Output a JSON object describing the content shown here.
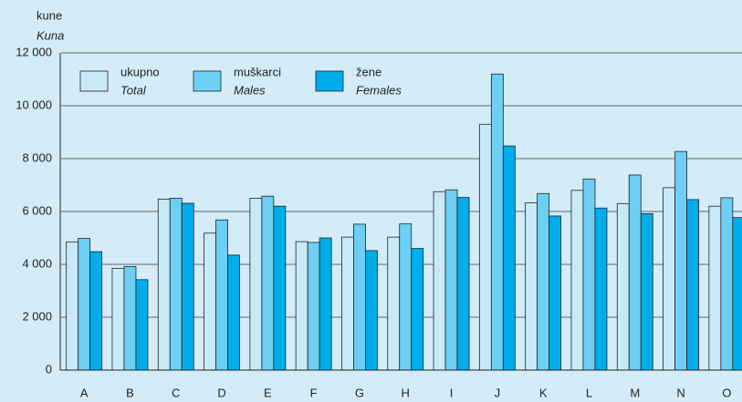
{
  "chart_data": {
    "type": "bar",
    "y_label": "kune",
    "y_label_en": "Kuna",
    "categories": [
      "A",
      "B",
      "C",
      "D",
      "E",
      "F",
      "G",
      "H",
      "I",
      "J",
      "K",
      "L",
      "M",
      "N",
      "O"
    ],
    "series": [
      {
        "name": "ukupno",
        "name_en": "Total",
        "color": "#c8eaf8",
        "values": [
          4850,
          3850,
          6470,
          5180,
          6500,
          4860,
          5030,
          5030,
          6750,
          9300,
          6330,
          6800,
          6300,
          6900,
          6200
        ]
      },
      {
        "name": "muškarci",
        "name_en": "Males",
        "color": "#6ccff3",
        "values": [
          4980,
          3920,
          6500,
          5680,
          6580,
          4830,
          5520,
          5530,
          6820,
          11200,
          6680,
          7230,
          7380,
          8270,
          6520
        ]
      },
      {
        "name": "žene",
        "name_en": "Females",
        "color": "#00adea",
        "values": [
          4480,
          3420,
          6310,
          4350,
          6200,
          5000,
          4520,
          4600,
          6530,
          8480,
          5830,
          6130,
          5920,
          6450,
          5770
        ]
      }
    ],
    "ylim": [
      0,
      12000
    ],
    "yticks": [
      0,
      {
        "value": 2000,
        "label": "2 000"
      },
      {
        "value": 4000,
        "label": "4 000"
      },
      {
        "value": 6000,
        "label": "6 000"
      },
      {
        "value": 8000,
        "label": "8 000"
      },
      {
        "value": 10000,
        "label": "10 000"
      },
      {
        "value": 12000,
        "label": "12 000"
      }
    ],
    "grid": true
  }
}
